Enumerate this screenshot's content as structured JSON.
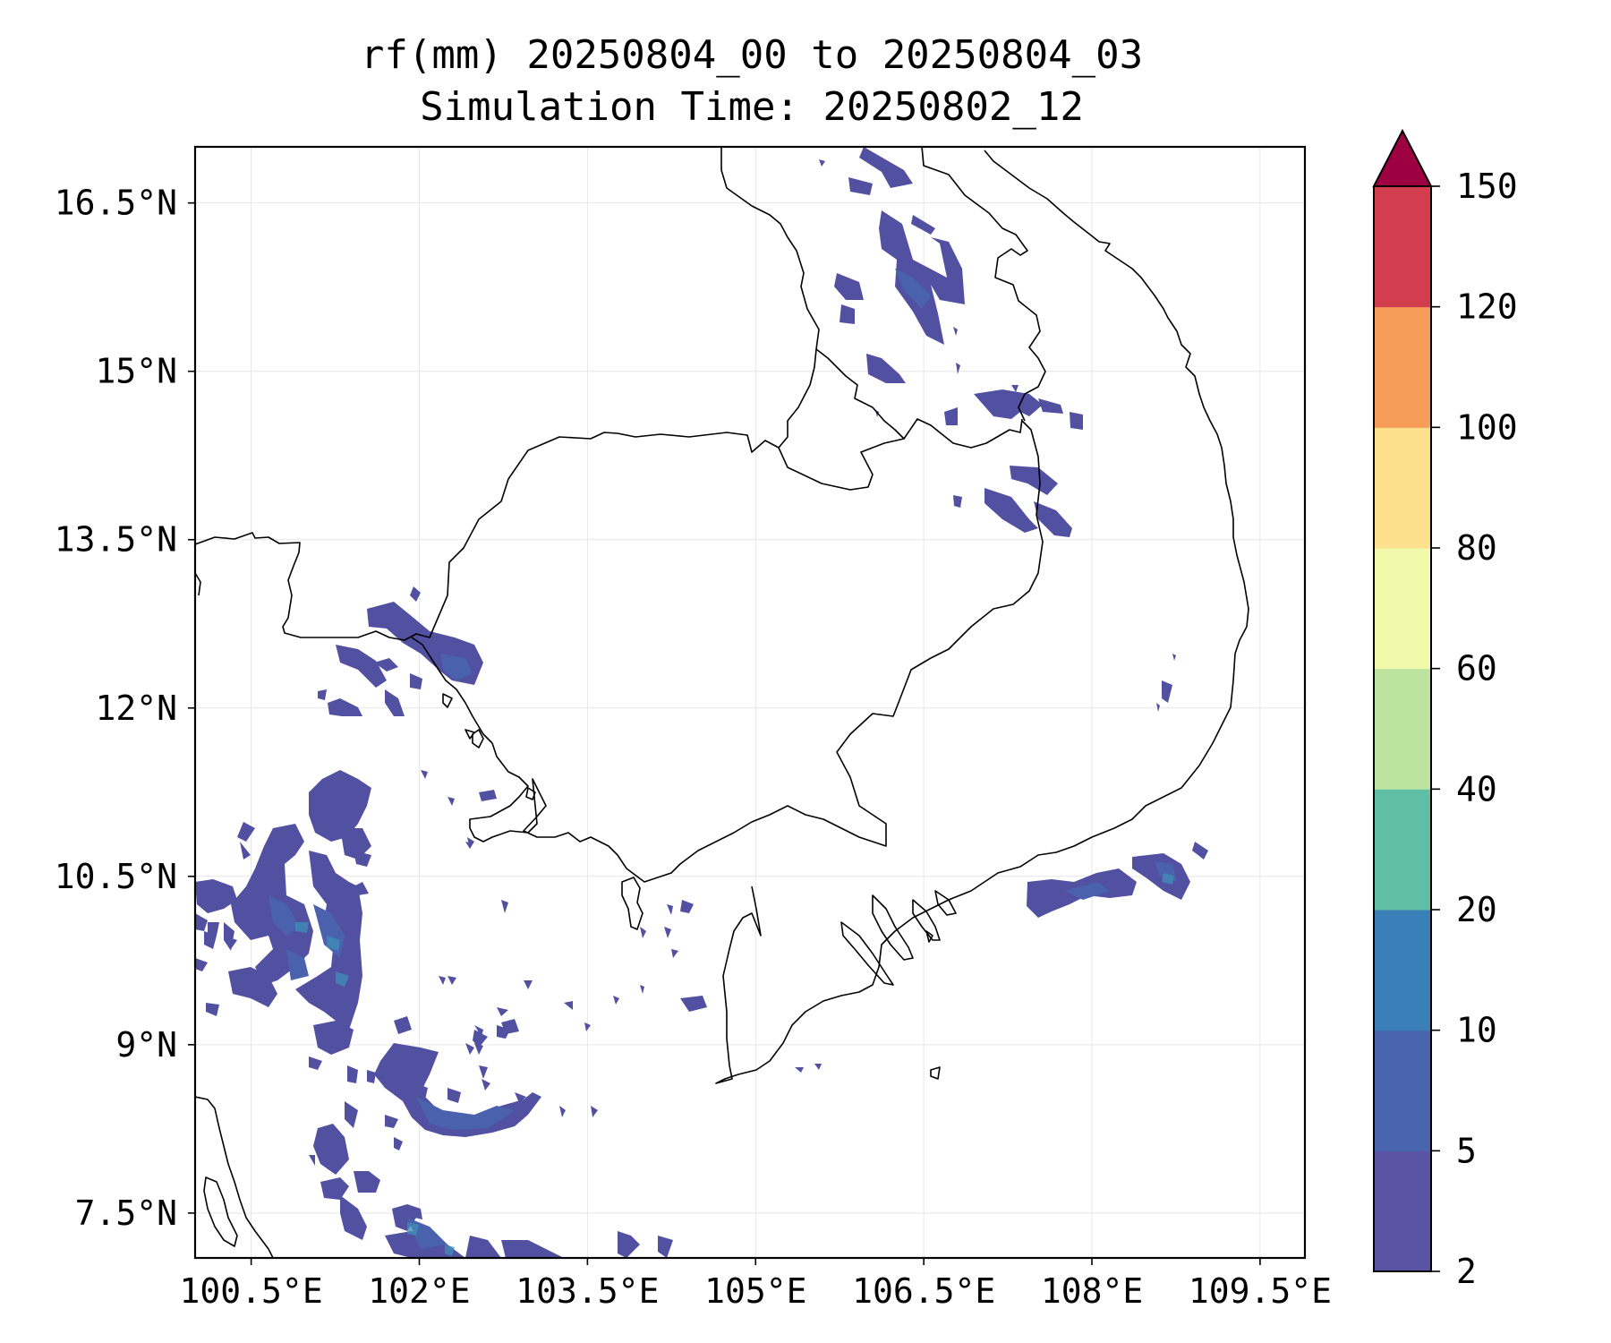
{
  "title": {
    "line1": "rf(mm) 20250804_00 to 20250804_03",
    "line2": "Simulation Time: 20250802_12"
  },
  "map": {
    "lon_range": [
      100,
      109.9
    ],
    "lat_range": [
      7.1,
      17
    ],
    "x_ticks": [
      {
        "value": 100.5,
        "label": "100.5°E"
      },
      {
        "value": 102,
        "label": "102°E"
      },
      {
        "value": 103.5,
        "label": "103.5°E"
      },
      {
        "value": 105,
        "label": "105°E"
      },
      {
        "value": 106.5,
        "label": "106.5°E"
      },
      {
        "value": 108,
        "label": "108°E"
      },
      {
        "value": 109.5,
        "label": "109.5°E"
      }
    ],
    "y_ticks": [
      {
        "value": 16.5,
        "label": "16.5°N"
      },
      {
        "value": 15,
        "label": "15°N"
      },
      {
        "value": 13.5,
        "label": "13.5°N"
      },
      {
        "value": 12,
        "label": "12°N"
      },
      {
        "value": 10.5,
        "label": "10.5°N"
      },
      {
        "value": 9,
        "label": "9°N"
      },
      {
        "value": 7.5,
        "label": "7.5°N"
      }
    ],
    "gridlines": true,
    "rain_color": "#5150a1",
    "rain_dark_color": "#4a62ad",
    "rain_accent_color": "#3f8fb8"
  },
  "colorbar": {
    "levels": [
      2,
      5,
      10,
      20,
      40,
      60,
      80,
      100,
      120,
      150
    ],
    "labels": [
      "2",
      "5",
      "10",
      "20",
      "40",
      "60",
      "80",
      "100",
      "120",
      "150"
    ],
    "colors": [
      "#5b53a4",
      "#4a65af",
      "#3a7fb8",
      "#61bea6",
      "#bde3a0",
      "#f1f9ab",
      "#fde08b",
      "#f89c59",
      "#d33e4f"
    ],
    "extend_color": "#9e0142"
  }
}
